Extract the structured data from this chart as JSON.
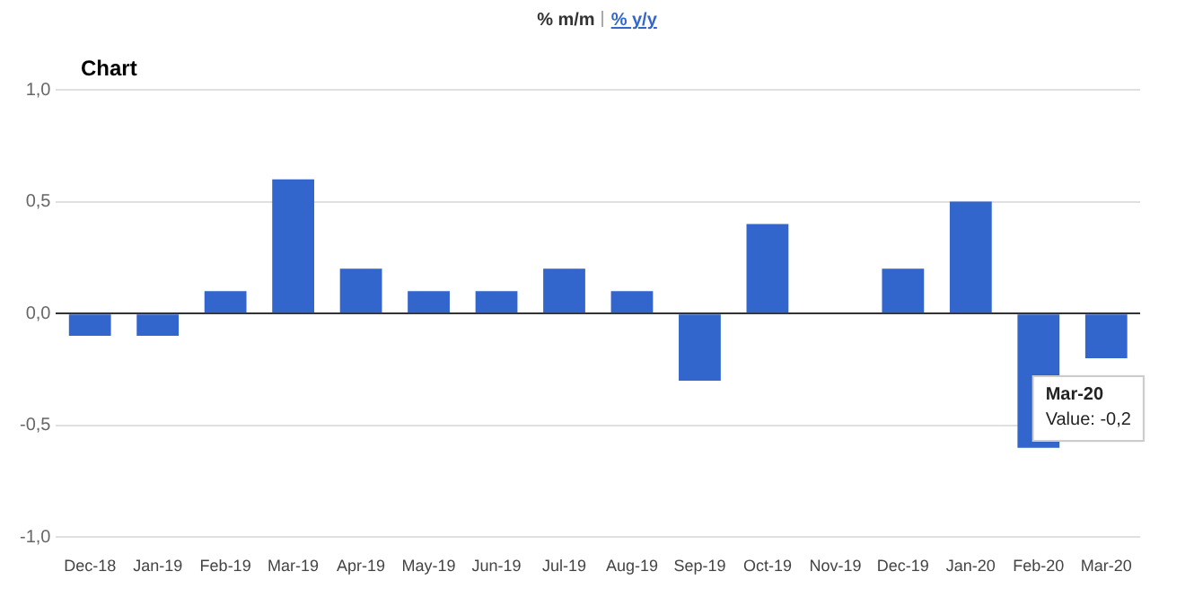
{
  "chart_data": {
    "type": "bar",
    "title": "Chart",
    "categories": [
      "Dec-18",
      "Jan-19",
      "Feb-19",
      "Mar-19",
      "Apr-19",
      "May-19",
      "Jun-19",
      "Jul-19",
      "Aug-19",
      "Sep-19",
      "Oct-19",
      "Nov-19",
      "Dec-19",
      "Jan-20",
      "Feb-20",
      "Mar-20"
    ],
    "values": [
      -0.1,
      -0.1,
      0.1,
      0.6,
      0.2,
      0.1,
      0.1,
      0.2,
      0.1,
      -0.3,
      0.4,
      0,
      0.2,
      0.5,
      -0.6,
      -0.2
    ],
    "color": "#3366cc",
    "ylim": [
      -1,
      1
    ],
    "yticks": [
      {
        "value": -1,
        "label": "-1,0"
      },
      {
        "value": -0.5,
        "label": "-0,5"
      },
      {
        "value": 0,
        "label": "0,0"
      },
      {
        "value": 0.5,
        "label": "0,5"
      },
      {
        "value": 1,
        "label": "1,0"
      }
    ],
    "grid": "y",
    "legend": false,
    "annotations": [
      "% m/m",
      "% y/y",
      {
        "text": "Mar-20",
        "x": "Mar-20",
        "y": -0.2
      },
      {
        "text": "Value: -0,2",
        "x": "Mar-20",
        "y": -0.2
      }
    ]
  }
}
